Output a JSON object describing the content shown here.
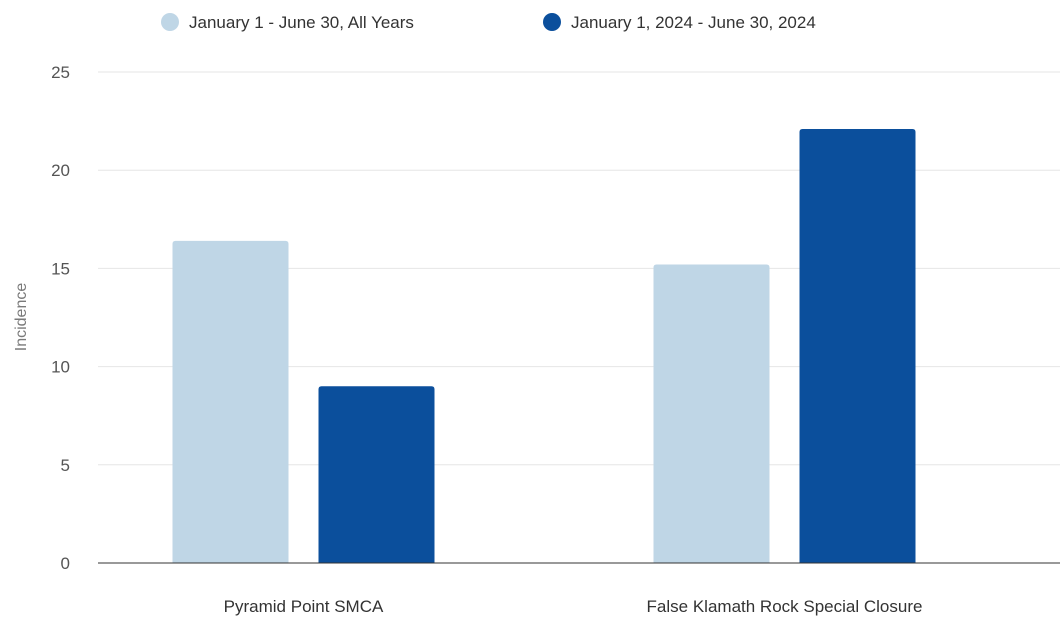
{
  "chart_data": {
    "type": "bar",
    "categories": [
      "Pyramid Point SMCA",
      "False Klamath Rock Special Closure"
    ],
    "series": [
      {
        "name": "January 1 - June 30, All Years",
        "values": [
          16.4,
          15.2
        ],
        "color": "#bfd6e6"
      },
      {
        "name": "January 1, 2024 - June 30, 2024",
        "values": [
          9,
          22.1
        ],
        "color": "#0b4f9c"
      }
    ],
    "title": "",
    "xlabel": "",
    "ylabel": "Incidence",
    "ylim": [
      0,
      25
    ],
    "yticks": [
      0,
      5,
      10,
      15,
      20,
      25
    ],
    "grid": true,
    "legend_position": "top"
  }
}
